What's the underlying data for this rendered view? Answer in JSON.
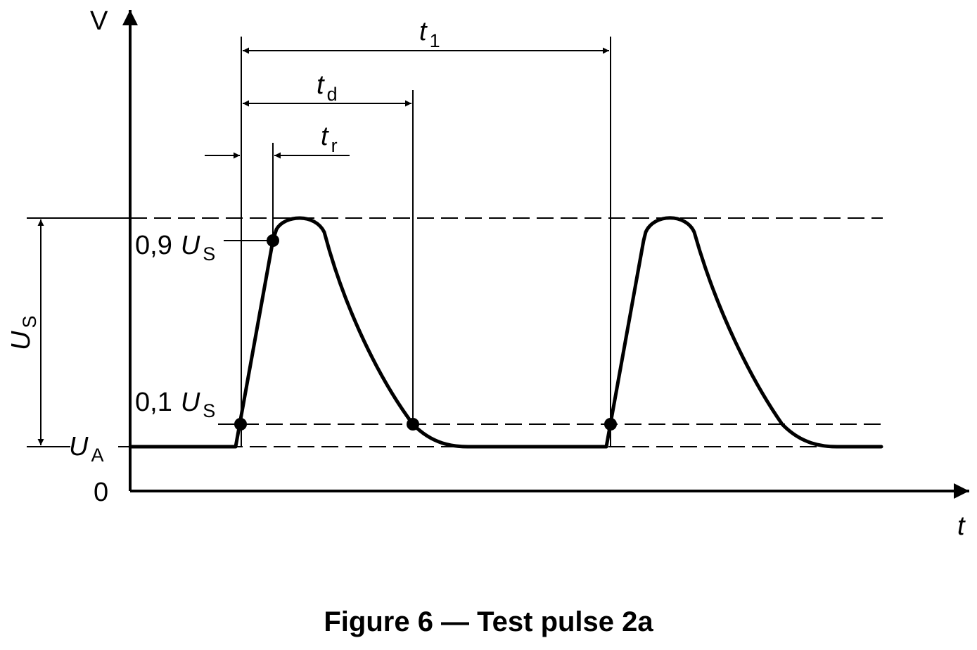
{
  "axes": {
    "y_label": "V",
    "x_label": "t",
    "origin_label": "0"
  },
  "levels": {
    "ua": {
      "symbol": "U",
      "subscript": "A"
    },
    "us_dimension": {
      "symbol": "U",
      "subscript": "S"
    },
    "level_09": {
      "factor": "0,9",
      "symbol": "U",
      "subscript": "S"
    },
    "level_01": {
      "factor": "0,1",
      "symbol": "U",
      "subscript": "S"
    }
  },
  "intervals": {
    "t1": {
      "symbol": "t",
      "subscript": "1"
    },
    "td": {
      "symbol": "t",
      "subscript": "d"
    },
    "tr": {
      "symbol": "t",
      "subscript": "r"
    }
  },
  "caption": "Figure 6 — Test pulse 2a"
}
